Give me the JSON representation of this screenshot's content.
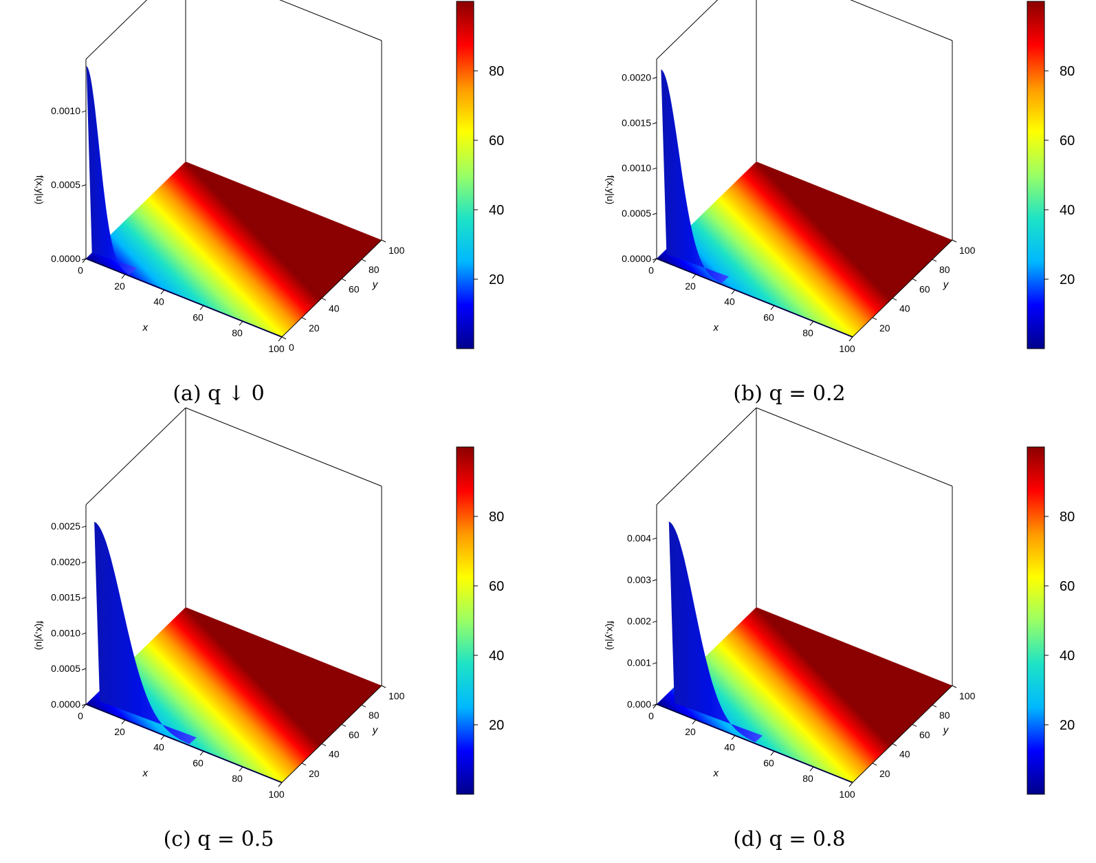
{
  "figure": {
    "colorscale": [
      "#00008b",
      "#0000ff",
      "#00b8ff",
      "#1ee3c6",
      "#9aff65",
      "#ffff00",
      "#ff9900",
      "#ff0000",
      "#8b0000"
    ],
    "panels": [
      {
        "caption": "(a) q ↓ 0"
      },
      {
        "caption": "(b) q = 0.2"
      },
      {
        "caption": "(c) q = 0.5"
      },
      {
        "caption": "(d) q = 0.8"
      }
    ]
  },
  "chart_data": [
    {
      "type": "surface",
      "caption": "(a) q ↓ 0",
      "xlabel": "x",
      "ylabel": "y",
      "zlabel": "f(x,y|u)",
      "xlim": [
        0,
        100
      ],
      "ylim": [
        0,
        100
      ],
      "zlim": [
        0,
        0.00135
      ],
      "x_ticks": [
        "0",
        "20",
        "40",
        "60",
        "80",
        "100"
      ],
      "y_ticks": [
        "0",
        "20",
        "40",
        "60",
        "80",
        "100"
      ],
      "z_ticks": [
        {
          "value": 0,
          "label": "0.0000"
        },
        {
          "value": 0.0005,
          "label": "0.0005"
        },
        {
          "value": 0.001,
          "label": "0.0010"
        }
      ],
      "peak": {
        "x": 0,
        "z": 0.0013
      },
      "peak_width": 10,
      "colorbar": {
        "range": [
          0,
          100
        ],
        "ticks": [
          "20",
          "40",
          "60",
          "80"
        ]
      }
    },
    {
      "type": "surface",
      "caption": "(b) q = 0.2",
      "xlabel": "x",
      "ylabel": "y",
      "zlabel": "f(x,y|u)",
      "xlim": [
        0,
        100
      ],
      "ylim": [
        0,
        100
      ],
      "zlim": [
        0,
        0.0022
      ],
      "x_ticks": [
        "0",
        "20",
        "40",
        "60",
        "80",
        "100"
      ],
      "y_ticks": [
        "20",
        "40",
        "60",
        "80",
        "100"
      ],
      "z_ticks": [
        {
          "value": 0,
          "label": "0.0000"
        },
        {
          "value": 0.0005,
          "label": "0.0005"
        },
        {
          "value": 0.001,
          "label": "0.0010"
        },
        {
          "value": 0.0015,
          "label": "0.0015"
        },
        {
          "value": 0.002,
          "label": "0.0020"
        }
      ],
      "peak": {
        "x": 2,
        "z": 0.0021
      },
      "peak_width": 14,
      "colorbar": {
        "range": [
          0,
          100
        ],
        "ticks": [
          "20",
          "40",
          "60",
          "80"
        ]
      }
    },
    {
      "type": "surface",
      "caption": "(c) q = 0.5",
      "xlabel": "x",
      "ylabel": "y",
      "zlabel": "f(x,y|u)",
      "xlim": [
        0,
        100
      ],
      "ylim": [
        0,
        100
      ],
      "zlim": [
        0,
        0.0028
      ],
      "x_ticks": [
        "0",
        "20",
        "40",
        "60",
        "80",
        "100"
      ],
      "y_ticks": [
        "20",
        "40",
        "60",
        "80",
        "100"
      ],
      "z_ticks": [
        {
          "value": 0,
          "label": "0.0000"
        },
        {
          "value": 0.0005,
          "label": "0.0005"
        },
        {
          "value": 0.001,
          "label": "0.0010"
        },
        {
          "value": 0.0015,
          "label": "0.0015"
        },
        {
          "value": 0.002,
          "label": "0.0020"
        },
        {
          "value": 0.0025,
          "label": "0.0025"
        }
      ],
      "peak": {
        "x": 4,
        "z": 0.0026
      },
      "peak_width": 22,
      "colorbar": {
        "range": [
          0,
          100
        ],
        "ticks": [
          "20",
          "40",
          "60",
          "80"
        ]
      }
    },
    {
      "type": "surface",
      "caption": "(d) q = 0.8",
      "xlabel": "x",
      "ylabel": "y",
      "zlabel": "f(x,y|u)",
      "xlim": [
        0,
        100
      ],
      "ylim": [
        0,
        100
      ],
      "zlim": [
        0,
        0.0048
      ],
      "x_ticks": [
        "0",
        "20",
        "40",
        "60",
        "80",
        "100"
      ],
      "y_ticks": [
        "20",
        "40",
        "60",
        "80",
        "100"
      ],
      "z_ticks": [
        {
          "value": 0,
          "label": "0.000"
        },
        {
          "value": 0.001,
          "label": "0.001"
        },
        {
          "value": 0.002,
          "label": "0.002"
        },
        {
          "value": 0.003,
          "label": "0.003"
        },
        {
          "value": 0.004,
          "label": "0.004"
        }
      ],
      "peak": {
        "x": 6,
        "z": 0.0045
      },
      "peak_width": 20,
      "colorbar": {
        "range": [
          0,
          100
        ],
        "ticks": [
          "20",
          "40",
          "60",
          "80"
        ]
      }
    }
  ]
}
